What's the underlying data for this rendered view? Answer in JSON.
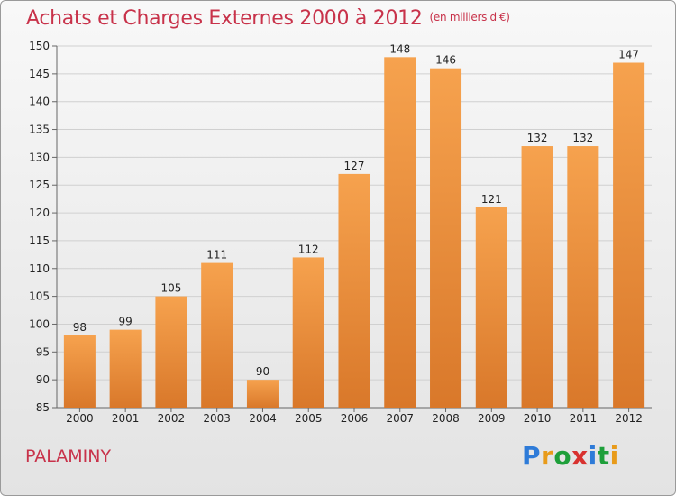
{
  "header": {
    "title": "Achats et Charges Externes 2000 à 2012",
    "unit": "(en milliers d'€)"
  },
  "commune": "PALAMINY",
  "logo": {
    "letters": [
      "P",
      "r",
      "o",
      "x",
      "i",
      "t",
      "i"
    ],
    "colors": [
      "#2e7bd8",
      "#e89b1a",
      "#1e9f3a",
      "#d8322f",
      "#2e7bd8",
      "#1e9f3a",
      "#e89b1a"
    ]
  },
  "colors": {
    "bar_light": "#f6a24e",
    "bar_dark": "#d9782a",
    "title": "#c8324a"
  },
  "chart_data": {
    "type": "bar",
    "title": "Achats et Charges Externes 2000 à 2012",
    "categories": [
      "2000",
      "2001",
      "2002",
      "2003",
      "2004",
      "2005",
      "2006",
      "2007",
      "2008",
      "2009",
      "2010",
      "2011",
      "2012"
    ],
    "values": [
      98,
      99,
      105,
      111,
      90,
      112,
      127,
      148,
      146,
      121,
      132,
      132,
      147
    ],
    "ylim": [
      85,
      150
    ],
    "yticks": [
      85,
      90,
      95,
      100,
      105,
      110,
      115,
      120,
      125,
      130,
      135,
      140,
      145,
      150
    ],
    "grid": true
  }
}
